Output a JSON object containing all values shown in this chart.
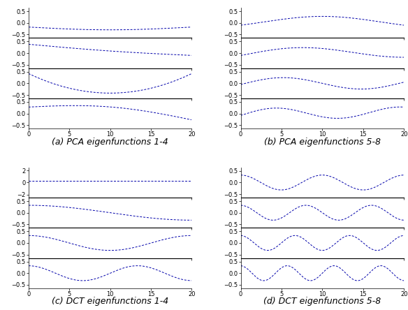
{
  "title_a": "(a) PCA eigenfunctions 1-4",
  "title_b": "(b) PCA eigenfunctions 5-8",
  "title_c": "(c) DCT eigenfunctions 1-4",
  "title_d": "(d) DCT eigenfunctions 5-8",
  "line_color": "#0000aa",
  "n_points": 200,
  "x_max": 20,
  "background": "white",
  "caption_fontsize": 9,
  "tick_fontsize": 6
}
